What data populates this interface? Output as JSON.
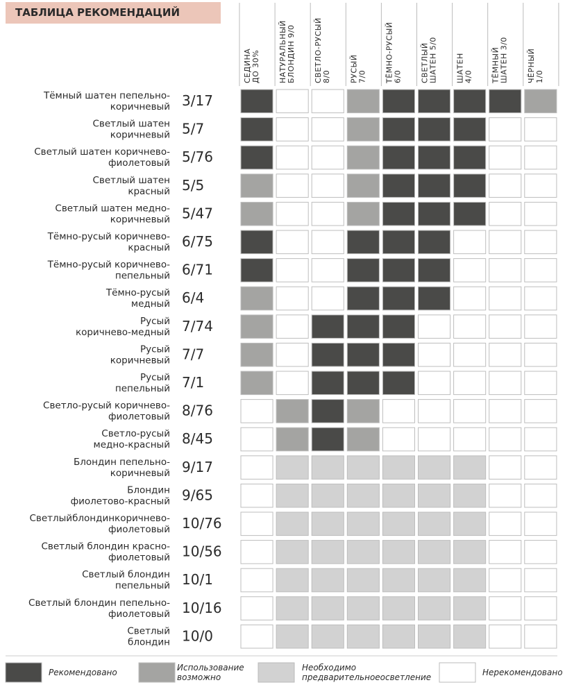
{
  "header": {
    "title": "ТАБЛИЦА РЕКОМЕНДАЦИЙ"
  },
  "columns": [
    [
      "СЕДИНА",
      "ДО 30%"
    ],
    [
      "НАТУРАЛЬНЫЙ",
      "БЛОНДИН 9/0"
    ],
    [
      "СВЕТЛО-РУСЫЙ",
      "8/0"
    ],
    [
      "РУСЫЙ",
      "7/0"
    ],
    [
      "ТЁМНО-РУСЫЙ",
      "6/0"
    ],
    [
      "СВЕТЛЫЙ",
      "ШАТЕН 5/0"
    ],
    [
      "ШАТЕН",
      "4/0"
    ],
    [
      "ТЁМНЫЙ",
      "ШАТЕН 3/0"
    ],
    [
      "ЧЁРНЫЙ",
      "1/0"
    ]
  ],
  "legend": [
    {
      "label": [
        "Рекомендовано"
      ],
      "color": "#4a4a48"
    },
    {
      "label": [
        "Использование",
        "возможно"
      ],
      "color": "#a4a4a2"
    },
    {
      "label": [
        "Необходимо",
        "предварительноеосветление"
      ],
      "color": "#d2d2d2"
    },
    {
      "label": [
        "Нерекомендовано"
      ],
      "color": "#ffffff"
    }
  ],
  "rows": [
    {
      "name": [
        "Тёмный шатен пепельно-",
        "коричневый"
      ],
      "code": "3/17",
      "cells": [
        0,
        3,
        3,
        1,
        0,
        0,
        0,
        0,
        1
      ]
    },
    {
      "name": [
        "Светлый шатен",
        "коричневый"
      ],
      "code": "5/7",
      "cells": [
        0,
        3,
        3,
        1,
        0,
        0,
        0,
        3,
        3
      ]
    },
    {
      "name": [
        "Светлый шатен коричнево-",
        "фиолетовый"
      ],
      "code": "5/76",
      "cells": [
        0,
        3,
        3,
        1,
        0,
        0,
        0,
        3,
        3
      ]
    },
    {
      "name": [
        "Светлый шатен",
        "красный"
      ],
      "code": "5/5",
      "cells": [
        1,
        3,
        3,
        1,
        0,
        0,
        0,
        3,
        3
      ]
    },
    {
      "name": [
        "Светлый шатен медно-",
        "коричневый"
      ],
      "code": "5/47",
      "cells": [
        1,
        3,
        3,
        1,
        0,
        0,
        0,
        3,
        3
      ]
    },
    {
      "name": [
        "Тёмно-русый коричнево-",
        "красный"
      ],
      "code": "6/75",
      "cells": [
        0,
        3,
        3,
        0,
        0,
        0,
        3,
        3,
        3
      ]
    },
    {
      "name": [
        "Тёмно-русый коричнево-",
        "пепельный"
      ],
      "code": "6/71",
      "cells": [
        0,
        3,
        3,
        0,
        0,
        0,
        3,
        3,
        3
      ]
    },
    {
      "name": [
        "Тёмно-русый",
        "медный"
      ],
      "code": "6/4",
      "cells": [
        1,
        3,
        3,
        0,
        0,
        0,
        3,
        3,
        3
      ]
    },
    {
      "name": [
        "Русый",
        "коричнево-медный"
      ],
      "code": "7/74",
      "cells": [
        1,
        3,
        0,
        0,
        0,
        3,
        3,
        3,
        3
      ]
    },
    {
      "name": [
        "Русый",
        "коричневый"
      ],
      "code": "7/7",
      "cells": [
        1,
        3,
        0,
        0,
        0,
        3,
        3,
        3,
        3
      ]
    },
    {
      "name": [
        "Русый",
        "пепельный"
      ],
      "code": "7/1",
      "cells": [
        1,
        3,
        0,
        0,
        0,
        3,
        3,
        3,
        3
      ]
    },
    {
      "name": [
        "Светло-русый коричнево-",
        "фиолетовый"
      ],
      "code": "8/76",
      "cells": [
        3,
        1,
        0,
        1,
        3,
        3,
        3,
        3,
        3
      ]
    },
    {
      "name": [
        "Светло-русый",
        "медно-красный"
      ],
      "code": "8/45",
      "cells": [
        3,
        1,
        0,
        1,
        3,
        3,
        3,
        3,
        3
      ]
    },
    {
      "name": [
        "Блондин пепельно-",
        "коричневый"
      ],
      "code": "9/17",
      "cells": [
        3,
        2,
        2,
        2,
        2,
        2,
        2,
        3,
        3
      ]
    },
    {
      "name": [
        "Блондин",
        "фиолетово-красный"
      ],
      "code": "9/65",
      "cells": [
        3,
        2,
        2,
        2,
        2,
        2,
        2,
        3,
        3
      ]
    },
    {
      "name": [
        "Светлыйблондинкоричнево-",
        "фиолетовый"
      ],
      "code": "10/76",
      "cells": [
        3,
        2,
        2,
        2,
        2,
        2,
        2,
        3,
        3
      ]
    },
    {
      "name": [
        "Светлый блондин красно-",
        "фиолетовый"
      ],
      "code": "10/56",
      "cells": [
        3,
        2,
        2,
        2,
        2,
        2,
        2,
        3,
        3
      ]
    },
    {
      "name": [
        "Светлый блондин",
        "пепельный"
      ],
      "code": "10/1",
      "cells": [
        3,
        2,
        2,
        2,
        2,
        2,
        2,
        3,
        3
      ]
    },
    {
      "name": [
        "Светлый блондин пепельно-",
        "фиолетовый"
      ],
      "code": "10/16",
      "cells": [
        3,
        2,
        2,
        2,
        2,
        2,
        2,
        3,
        3
      ]
    },
    {
      "name": [
        "Светлый",
        "блондин"
      ],
      "code": "10/0",
      "cells": [
        3,
        2,
        2,
        2,
        2,
        2,
        2,
        3,
        3
      ]
    }
  ]
}
